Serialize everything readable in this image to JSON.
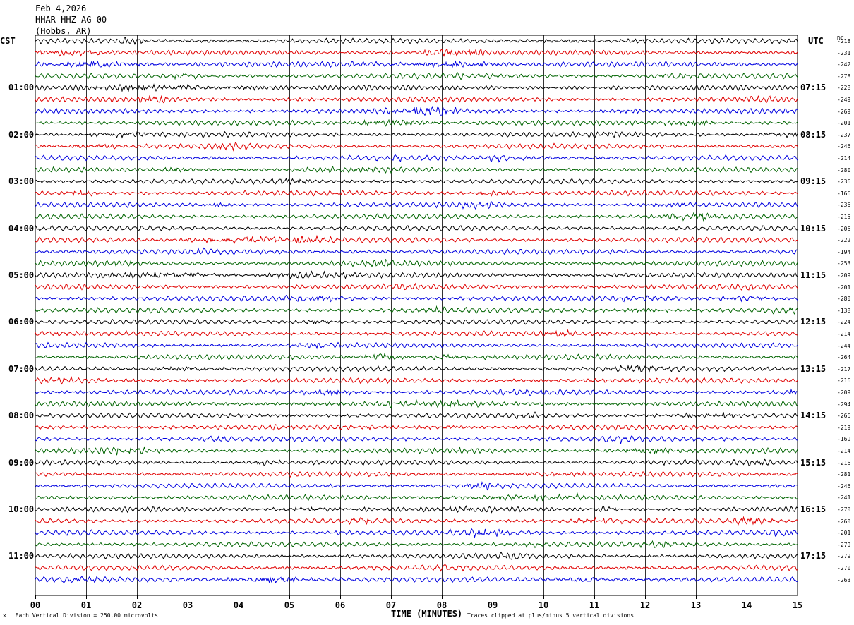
{
  "header": {
    "date": "Feb 4,2026",
    "station": "HHAR HHZ AG 00",
    "location": "(Hobbs, AR)"
  },
  "left_axis_title": "CST",
  "right_axis_title": "UTC",
  "dc_title": "DC",
  "footer": {
    "scale_note": "Each Vertical Division =  250.00 microvolts",
    "x_title": "TIME (MINUTES)",
    "clip_note": "Traces clipped at plus/minus 5 vertical divisions"
  },
  "colors": {
    "trace_cycle": [
      "#000000",
      "#e00000",
      "#0000e0",
      "#006400"
    ],
    "grid": "#000000"
  },
  "chart_data": {
    "type": "line",
    "title": "",
    "xlabel": "TIME (MINUTES)",
    "xlim": [
      0,
      15
    ],
    "x_ticks": [
      "00",
      "01",
      "02",
      "03",
      "04",
      "05",
      "06",
      "07",
      "08",
      "09",
      "10",
      "11",
      "12",
      "13",
      "14",
      "15"
    ],
    "traces_per_hour": 4,
    "minutes_per_trace": 15,
    "left_hour_labels": [
      "01:00",
      "02:00",
      "03:00",
      "04:00",
      "05:00",
      "06:00",
      "07:00",
      "08:00",
      "09:00",
      "10:00",
      "11:00"
    ],
    "right_hour_labels": [
      "07:15",
      "08:15",
      "09:15",
      "10:15",
      "11:15",
      "12:15",
      "13:15",
      "14:15",
      "15:15",
      "16:15",
      "17:15"
    ],
    "dc_offsets": [
      -218,
      -231,
      -242,
      -278,
      -228,
      -249,
      -269,
      -201,
      -237,
      -246,
      -214,
      -280,
      -236,
      -166,
      -236,
      -215,
      -206,
      -222,
      -194,
      -253,
      -209,
      -201,
      -280,
      -138,
      -224,
      -214,
      -244,
      -264,
      -217,
      -216,
      -209,
      -294,
      -266,
      -219,
      -169,
      -214,
      -216,
      -281,
      -246,
      -241,
      -270,
      -260,
      -201,
      -279,
      -279,
      -270,
      -263
    ],
    "series_colors_cycle": [
      "black",
      "red",
      "blue",
      "green"
    ]
  }
}
